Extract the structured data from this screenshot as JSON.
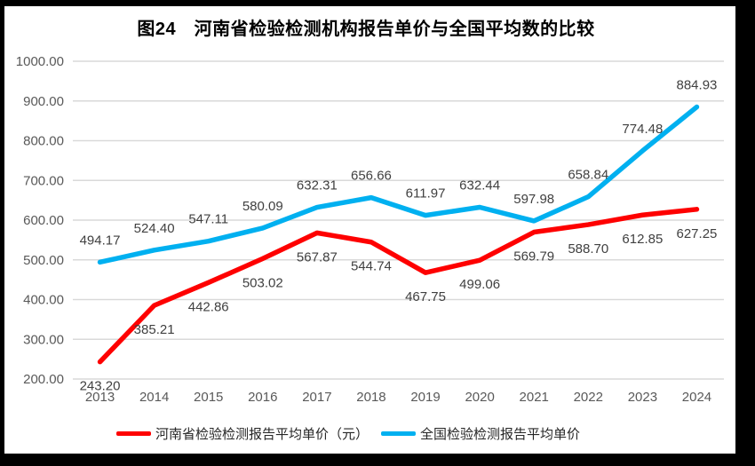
{
  "title": "图24　河南省检验检测机构报告单价与全国平均数的比较",
  "colors": {
    "henan": "#FE0000",
    "national": "#00B0F0",
    "gridline": "#D9D9D9",
    "axis_label": "#595959",
    "data_label": "#404040",
    "title_text": "#000000",
    "frame": "#000000"
  },
  "chart_data": {
    "type": "line",
    "categories": [
      "2013",
      "2014",
      "2015",
      "2016",
      "2017",
      "2018",
      "2019",
      "2020",
      "2021",
      "2022",
      "2023",
      "2024"
    ],
    "series": [
      {
        "name": "河南省检验检测报告平均单价（元）",
        "color_key": "henan",
        "values": [
          243.2,
          385.21,
          442.86,
          503.02,
          567.87,
          544.74,
          467.75,
          499.06,
          569.79,
          588.7,
          612.85,
          627.25
        ]
      },
      {
        "name": "全国检验检测报告平均单价",
        "color_key": "national",
        "values": [
          494.17,
          524.4,
          547.11,
          580.09,
          632.31,
          656.66,
          611.97,
          632.44,
          597.98,
          658.84,
          774.48,
          884.93
        ]
      }
    ],
    "title": "图24　河南省检验检测机构报告单价与全国平均数的比较",
    "xlabel": "",
    "ylabel": "",
    "ylim": [
      200,
      1000
    ],
    "ytick_step": 100,
    "ytick_decimals": 2,
    "grid": true,
    "data_labels": true,
    "legend_position": "bottom"
  }
}
